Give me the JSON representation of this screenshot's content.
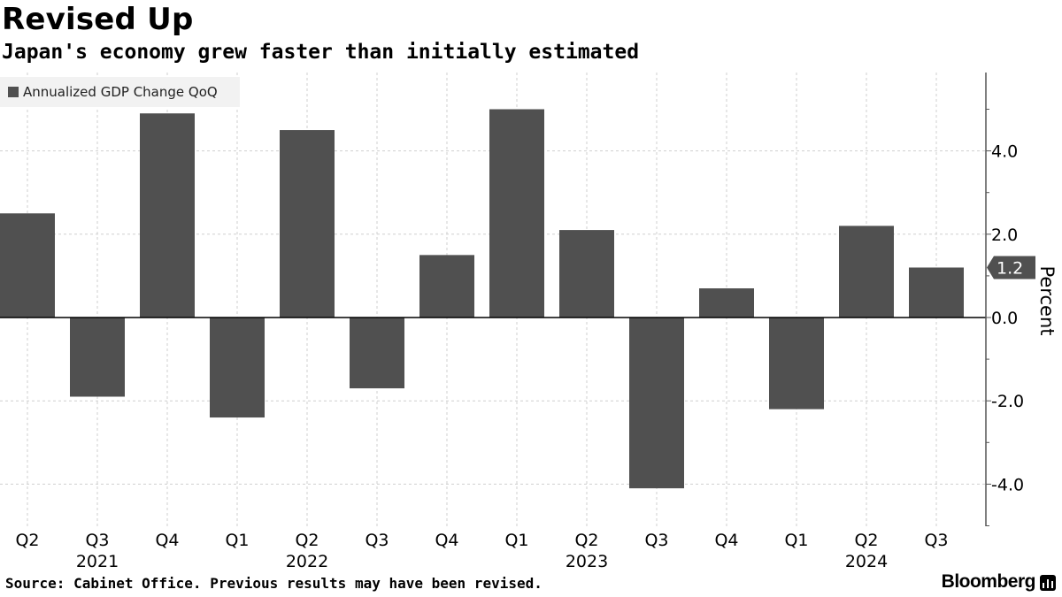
{
  "title": "Revised Up",
  "subtitle": "Japan's economy grew faster than initially estimated",
  "footer": {
    "source": "Source: Cabinet Office. Previous results may have been revised.",
    "brand": "Bloomberg",
    "brand_icon": "bar-chart-icon"
  },
  "colors": {
    "bar": "#505050",
    "grid": "#cfcfcf",
    "axis": "#555555",
    "last_value_bg": "#505050",
    "legend_bg": "#f2f2f2"
  },
  "chart_data": {
    "type": "bar",
    "legend": [
      "Annualized GDP Change QoQ"
    ],
    "legend_placement": "top-left",
    "ylabel": "Percent",
    "ylim": [
      -5.0,
      6.0
    ],
    "yticks": [
      "-4.0",
      "-2.0",
      "0.0",
      "2.0",
      "4.0"
    ],
    "ytick_values": [
      -4,
      -2,
      0,
      2,
      4
    ],
    "y_axis_side": "right",
    "grid": true,
    "last_value_label": "1.2",
    "categories": [
      "Q2",
      "Q3",
      "Q4",
      "Q1",
      "Q2",
      "Q3",
      "Q4",
      "Q1",
      "Q2",
      "Q3",
      "Q4",
      "Q1",
      "Q2",
      "Q3"
    ],
    "years": [
      {
        "label": "2021",
        "category_index": 1
      },
      {
        "label": "2022",
        "category_index": 4
      },
      {
        "label": "2023",
        "category_index": 8
      },
      {
        "label": "2024",
        "category_index": 12
      }
    ],
    "series": [
      {
        "name": "Annualized GDP Change QoQ",
        "values": [
          2.5,
          -1.9,
          4.9,
          -2.4,
          4.5,
          -1.7,
          1.5,
          5.0,
          2.1,
          -4.1,
          0.7,
          -2.2,
          2.2,
          1.2
        ]
      }
    ]
  }
}
